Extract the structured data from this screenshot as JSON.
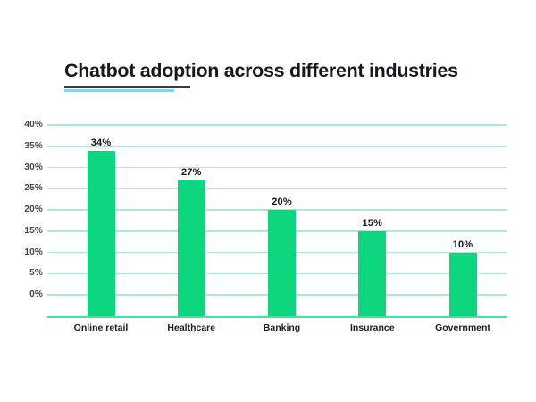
{
  "title": {
    "text": "Chatbot adoption across different industries"
  },
  "accents": {
    "underline_dark": "#3d3d3d",
    "underline_blue": "#85d2f1"
  },
  "chart_data": {
    "type": "bar",
    "title": "Chatbot adoption across different industries",
    "categories": [
      "Online retail",
      "Healthcare",
      "Banking",
      "Insurance",
      "Government"
    ],
    "values": [
      34,
      27,
      20,
      15,
      10
    ],
    "value_labels": [
      "34%",
      "27%",
      "20%",
      "15%",
      "10%"
    ],
    "xlabel": "",
    "ylabel": "",
    "ylim": [
      0,
      40
    ],
    "yticks": [
      40,
      35,
      30,
      25,
      20,
      15,
      10,
      5,
      0
    ],
    "ytick_labels": [
      "40%",
      "35%",
      "30%",
      "25%",
      "20%",
      "15%",
      "10%",
      "5%",
      "0%"
    ],
    "grid": "horizontal",
    "legend": "none",
    "colors": {
      "bar": "#0cd77e",
      "gridline": "#aceacf",
      "axis_line": "#43e19c",
      "value_label": "#141414",
      "tick_label": "#454545",
      "category_label": "#1c1c1c",
      "title": "#15191e",
      "background": "#ffffff"
    }
  }
}
